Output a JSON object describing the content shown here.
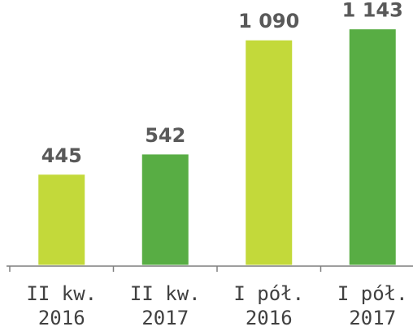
{
  "chart_data": {
    "type": "bar",
    "categories": [
      [
        "II kw.",
        "2016"
      ],
      [
        "II kw.",
        "2017"
      ],
      [
        "I pół.",
        "2016"
      ],
      [
        "I pół.",
        "2017"
      ]
    ],
    "values": [
      445,
      542,
      1090,
      1143
    ],
    "value_labels": [
      "445",
      "542",
      "1 090",
      "1 143"
    ],
    "bar_colors": [
      "#c3d93a",
      "#58ad44",
      "#c3d93a",
      "#58ad44"
    ],
    "title": "",
    "xlabel": "",
    "ylabel": "",
    "ylim": [
      0,
      1200
    ],
    "grid": false,
    "legend": "none"
  }
}
